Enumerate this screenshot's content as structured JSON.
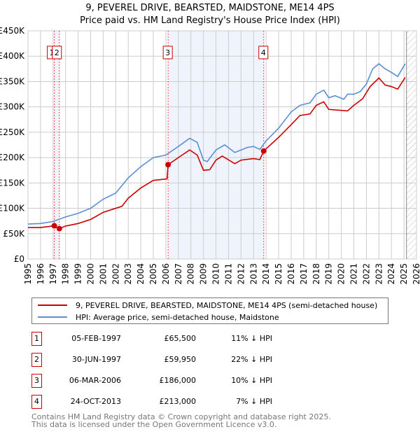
{
  "title": "9, PEVEREL DRIVE, BEARSTED, MAIDSTONE, ME14 4PS",
  "subtitle": "Price paid vs. HM Land Registry's House Price Index (HPI)",
  "chart_data": {
    "type": "line",
    "title": "9, PEVEREL DRIVE, BEARSTED, MAIDSTONE, ME14 4PS - Price paid vs. HM Land Registry's House Price Index (HPI)",
    "xlim": [
      1995,
      2026
    ],
    "ylim": [
      0,
      450000
    ],
    "x_ticks": [
      "1995",
      "1996",
      "1997",
      "1998",
      "1999",
      "2000",
      "2001",
      "2002",
      "2003",
      "2004",
      "2005",
      "2006",
      "2007",
      "2008",
      "2009",
      "2010",
      "2011",
      "2012",
      "2013",
      "2014",
      "2015",
      "2016",
      "2017",
      "2018",
      "2019",
      "2020",
      "2021",
      "2022",
      "2023",
      "2024",
      "2025",
      "2026"
    ],
    "y_ticks": [
      {
        "v": 0,
        "l": "£0"
      },
      {
        "v": 50000,
        "l": "£50K"
      },
      {
        "v": 100000,
        "l": "£100K"
      },
      {
        "v": 150000,
        "l": "£150K"
      },
      {
        "v": 200000,
        "l": "£200K"
      },
      {
        "v": 250000,
        "l": "£250K"
      },
      {
        "v": 300000,
        "l": "£300K"
      },
      {
        "v": 350000,
        "l": "£350K"
      },
      {
        "v": 400000,
        "l": "£400K"
      },
      {
        "v": 450000,
        "l": "£450K"
      }
    ],
    "grid": true,
    "series": [
      {
        "name": "9, PEVEREL DRIVE, BEARSTED, MAIDSTONE, ME14 4PS (semi-detached house)",
        "color": "#cc0000",
        "x": [
          1995,
          1996,
          1997.1,
          1997.5,
          1998,
          1999,
          2000,
          2001,
          2002,
          2002.5,
          2003,
          2004,
          2005,
          2006.1,
          2006.18,
          2007,
          2007.9,
          2008.5,
          2009,
          2009.5,
          2010,
          2010.5,
          2011.5,
          2012,
          2013,
          2013.5,
          2013.81,
          2015,
          2016,
          2016.7,
          2017.5,
          2018,
          2018.6,
          2019,
          2020.5,
          2021,
          2021.7,
          2022.3,
          2023,
          2023.5,
          2024,
          2024.5,
          2025.1
        ],
        "y": [
          62000,
          62000,
          65500,
          59950,
          65000,
          70000,
          78000,
          92000,
          100000,
          104000,
          120000,
          140000,
          155000,
          158000,
          186000,
          200000,
          215000,
          205000,
          175000,
          176000,
          195000,
          203000,
          188000,
          195000,
          198000,
          196000,
          213000,
          240000,
          265000,
          283000,
          286000,
          303000,
          310000,
          295000,
          292000,
          303000,
          316000,
          340000,
          357000,
          343000,
          340000,
          335000,
          358000
        ]
      },
      {
        "name": "HPI: Average price, semi-detached house, Maidstone",
        "color": "#5b8fd4",
        "x": [
          1995,
          1996,
          1997,
          1998,
          1999,
          2000,
          2001,
          2002,
          2003,
          2004,
          2005,
          2006,
          2007,
          2007.9,
          2008.5,
          2009,
          2009.3,
          2010,
          2010.7,
          2011.5,
          2012,
          2012.5,
          2013,
          2013.5,
          2014,
          2015,
          2016,
          2016.7,
          2017.5,
          2018,
          2018.6,
          2019,
          2019.5,
          2020.2,
          2020.5,
          2021,
          2021.5,
          2022,
          2022.5,
          2023,
          2023.5,
          2024,
          2024.5,
          2025.1
        ],
        "y": [
          69000,
          70000,
          74000,
          83000,
          90000,
          100000,
          118000,
          130000,
          160000,
          182000,
          200000,
          205000,
          222000,
          238000,
          230000,
          195000,
          192000,
          215000,
          225000,
          210000,
          215000,
          220000,
          222000,
          216000,
          233000,
          258000,
          290000,
          303000,
          308000,
          325000,
          333000,
          318000,
          322000,
          315000,
          325000,
          325000,
          330000,
          345000,
          375000,
          385000,
          375000,
          368000,
          360000,
          385000
        ]
      }
    ],
    "sales": [
      {
        "label": "1",
        "date": "05-FEB-1997",
        "x": 1997.1,
        "price": 65500,
        "price_text": "£65,500",
        "hpi": "11% ↓ HPI"
      },
      {
        "label": "2",
        "date": "30-JUN-1997",
        "x": 1997.5,
        "price": 59950,
        "price_text": "£59,950",
        "hpi": "22% ↓ HPI"
      },
      {
        "label": "3",
        "date": "06-MAR-2006",
        "x": 2006.18,
        "price": 186000,
        "price_text": "£186,000",
        "hpi": "10% ↓ HPI"
      },
      {
        "label": "4",
        "date": "24-OCT-2013",
        "x": 2013.81,
        "price": 213000,
        "price_text": "£213,000",
        "hpi": "7% ↓ HPI"
      }
    ],
    "forecast_start": 2025.2,
    "legend": "below"
  },
  "footer": [
    "Contains HM Land Registry data © Crown copyright and database right 2025.",
    "This data is licensed under the Open Government Licence v3.0."
  ]
}
